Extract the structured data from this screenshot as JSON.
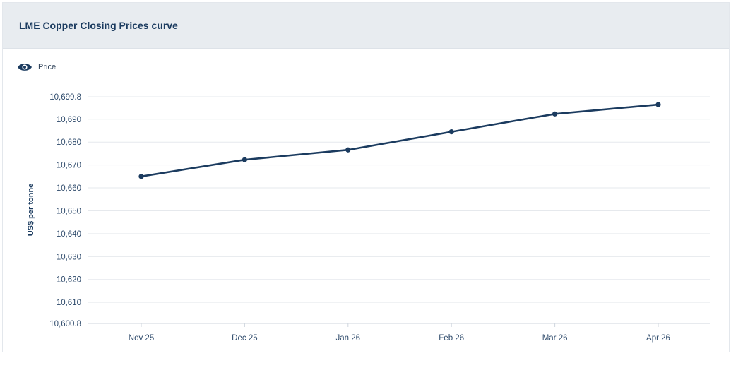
{
  "header": {
    "title": "LME Copper Closing Prices curve"
  },
  "legend": {
    "icon": "eye-icon",
    "label": "Price"
  },
  "colors": {
    "line": "#1b3b5f",
    "grid": "#e6e9ed",
    "header_bg": "#e8ecf0"
  },
  "chart_data": {
    "type": "line",
    "title": "LME Copper Closing Prices curve",
    "xlabel": "",
    "ylabel": "US$ per tonne",
    "categories": [
      "Nov 25",
      "Dec 25",
      "Jan 26",
      "Feb 26",
      "Mar 26",
      "Apr 26"
    ],
    "series": [
      {
        "name": "Price",
        "values": [
          10665.0,
          10672.3,
          10676.6,
          10684.5,
          10692.3,
          10696.4
        ]
      }
    ],
    "ylim": [
      10600.8,
      10699.8
    ],
    "y_ticks": [
      10600.8,
      10610,
      10620,
      10630,
      10640,
      10650,
      10660,
      10670,
      10680,
      10690,
      10699.8
    ],
    "y_tick_labels": [
      "10,600.8",
      "10,610",
      "10,620",
      "10,630",
      "10,640",
      "10,650",
      "10,660",
      "10,670",
      "10,680",
      "10,690",
      "10,699.8"
    ],
    "grid": true,
    "legend_position": "top-left"
  }
}
